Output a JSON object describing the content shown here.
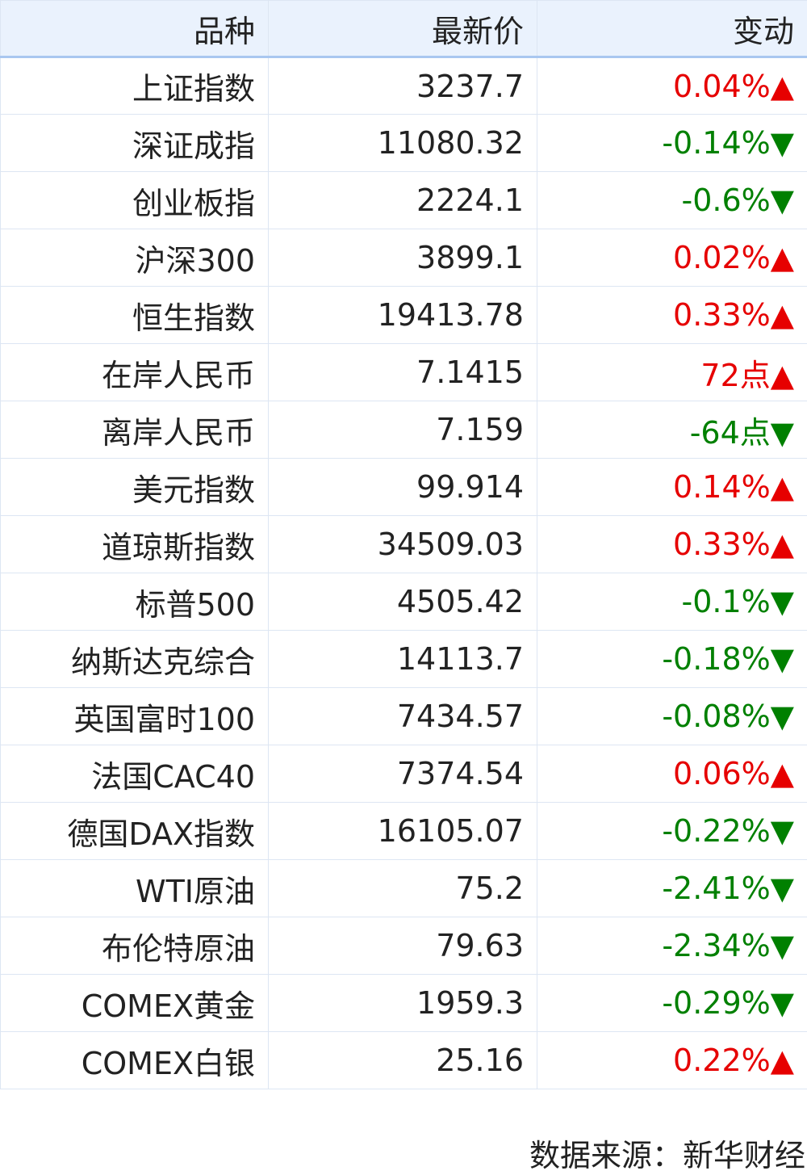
{
  "table": {
    "header": [
      "品种",
      "最新价",
      "变动"
    ],
    "rows": [
      {
        "name": "上证指数",
        "price": "3237.7",
        "change": "0.04%▲",
        "color": "#e60000"
      },
      {
        "name": "深证成指",
        "price": "11080.32",
        "change": "-0.14%▼",
        "color": "#008000"
      },
      {
        "name": "创业板指",
        "price": "2224.1",
        "change": "-0.6%▼",
        "color": "#008000"
      },
      {
        "name": "沪深300",
        "price": "3899.1",
        "change": "0.02%▲",
        "color": "#e60000"
      },
      {
        "name": "恒生指数",
        "price": "19413.78",
        "change": "0.33%▲",
        "color": "#e60000"
      },
      {
        "name": "在岸人民币",
        "price": "7.1415",
        "change": "72点▲",
        "color": "#e60000"
      },
      {
        "name": "离岸人民币",
        "price": "7.159",
        "change": "-64点▼",
        "color": "#008000"
      },
      {
        "name": "美元指数",
        "price": "99.914",
        "change": "0.14%▲",
        "color": "#e60000"
      },
      {
        "name": "道琼斯指数",
        "price": "34509.03",
        "change": "0.33%▲",
        "color": "#e60000"
      },
      {
        "name": "标普500",
        "price": "4505.42",
        "change": "-0.1%▼",
        "color": "#008000"
      },
      {
        "name": "纳斯达克综合",
        "price": "14113.7",
        "change": "-0.18%▼",
        "color": "#008000"
      },
      {
        "name": "英国富时100",
        "price": "7434.57",
        "change": "-0.08%▼",
        "color": "#008000"
      },
      {
        "name": "法国CAC40",
        "price": "7374.54",
        "change": "0.06%▲",
        "color": "#e60000"
      },
      {
        "name": "德国DAX指数",
        "price": "16105.07",
        "change": "-0.22%▼",
        "color": "#008000"
      },
      {
        "name": "WTI原油",
        "price": "75.2",
        "change": "-2.41%▼",
        "color": "#008000"
      },
      {
        "name": "布伦特原油",
        "price": "79.63",
        "change": "-2.34%▼",
        "color": "#008000"
      },
      {
        "name": "COMEX黄金",
        "price": "1959.3",
        "change": "-0.29%▼",
        "color": "#008000"
      },
      {
        "name": "COMEX白银",
        "price": "25.16",
        "change": "0.22%▲",
        "color": "#e60000"
      }
    ]
  },
  "footer": "数据来源：新华财经"
}
